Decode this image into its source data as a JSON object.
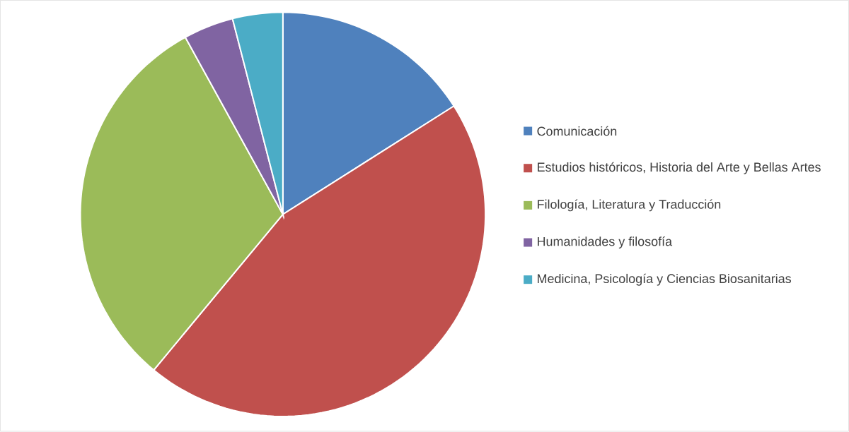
{
  "chart_data": {
    "type": "pie",
    "categories": [
      "Comunicación",
      "Estudios históricos, Historia del Arte y Bellas Artes",
      "Filología, Literatura y Traducción",
      "Humanidades y filosofía",
      "Medicina, Psicología y Ciencias Biosanitarias"
    ],
    "values": [
      16,
      45,
      31,
      4,
      4
    ],
    "colors": [
      "#4f81bd",
      "#c0504d",
      "#9bbb59",
      "#8064a2",
      "#4bacc6"
    ],
    "legend": "right"
  }
}
